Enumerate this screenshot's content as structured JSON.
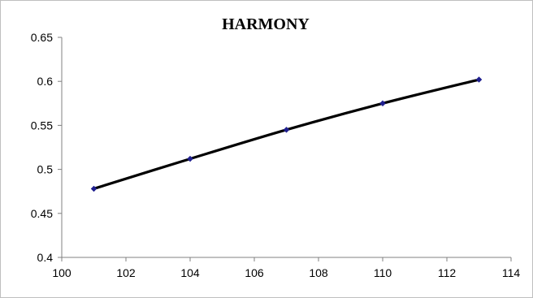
{
  "chart_data": {
    "type": "scatter",
    "title": "HARMONY",
    "xlabel": "",
    "ylabel": "",
    "xlim": [
      100,
      114
    ],
    "ylim": [
      0.4,
      0.65
    ],
    "x_ticks": [
      "100",
      "102",
      "104",
      "106",
      "108",
      "110",
      "112",
      "114"
    ],
    "y_ticks": [
      "0.4",
      "0.45",
      "0.5",
      "0.55",
      "0.6",
      "0.65"
    ],
    "grid": false,
    "legend": "none",
    "series": [
      {
        "x": [
          101,
          104,
          107,
          110,
          113
        ],
        "y": [
          0.478,
          0.512,
          0.545,
          0.575,
          0.602
        ],
        "line": "smooth",
        "line_color": "#000000",
        "marker_color": "#1f1f8f",
        "marker": "diamond"
      }
    ]
  }
}
